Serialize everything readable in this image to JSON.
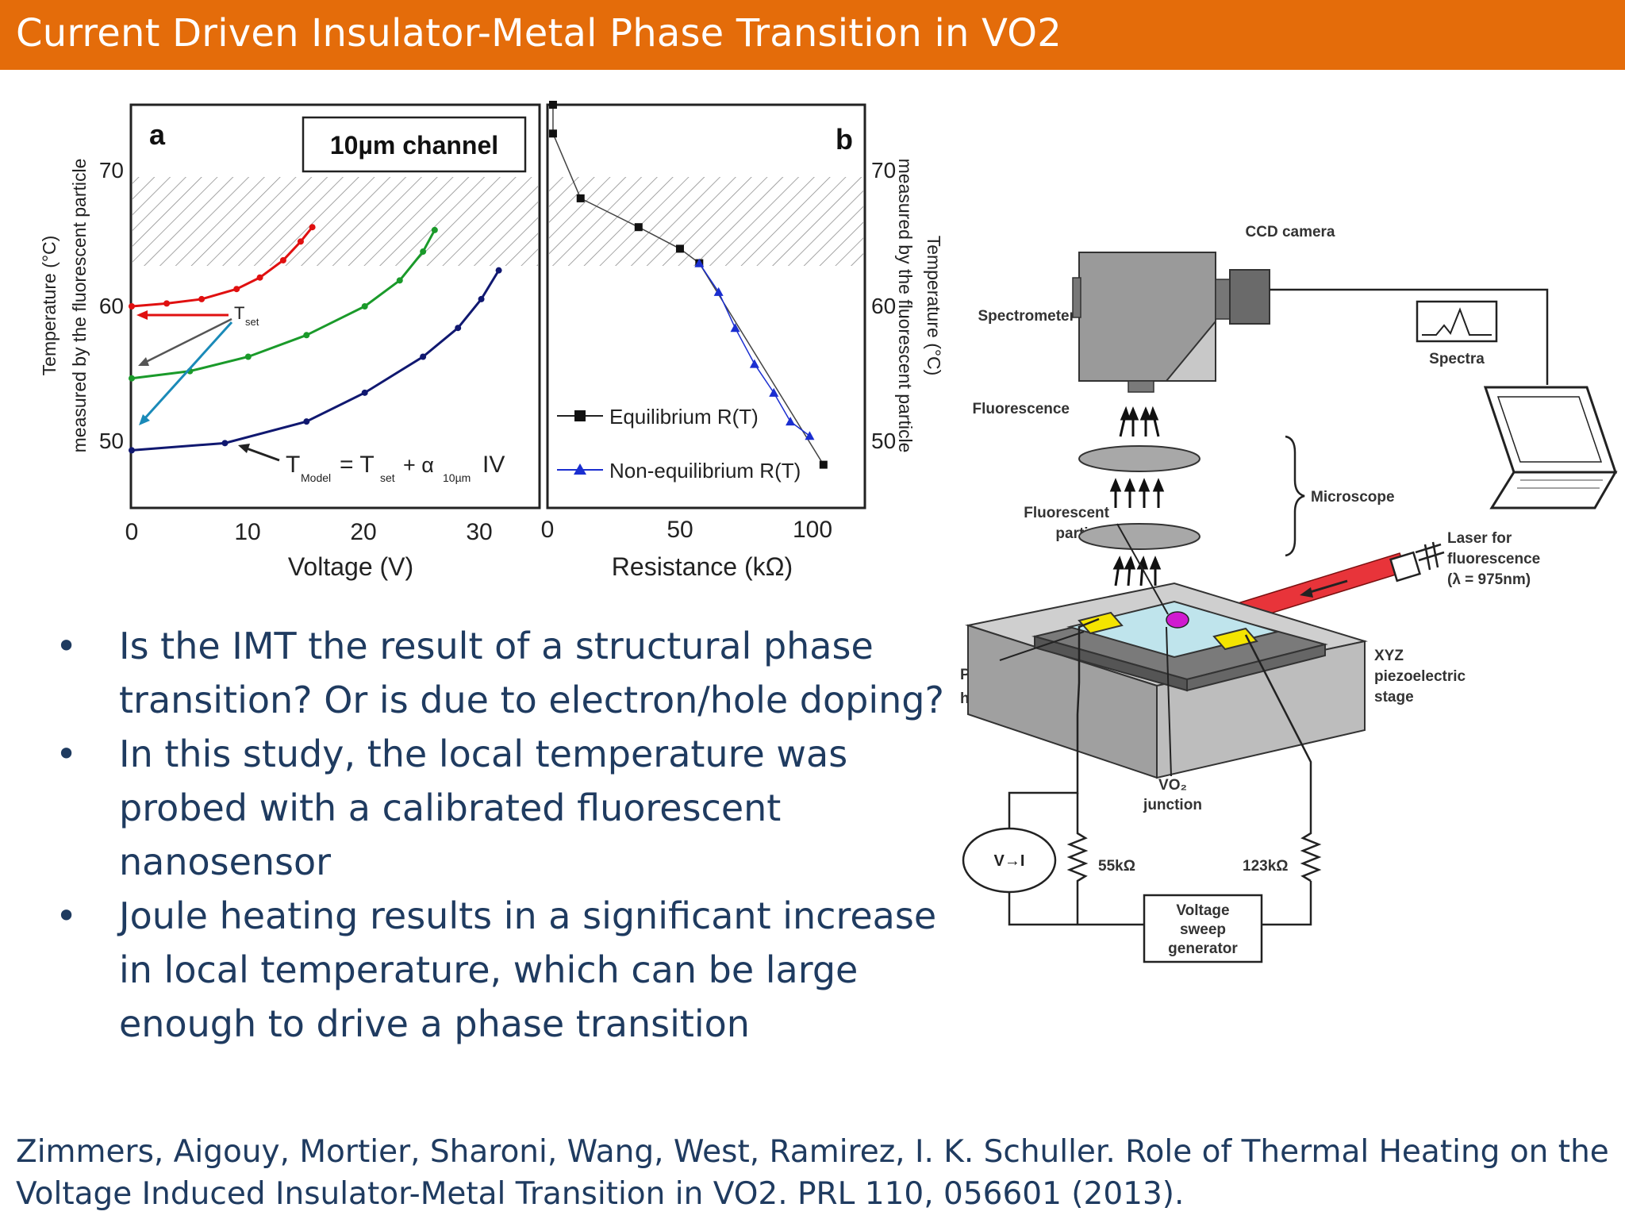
{
  "slide": {
    "title": "Current Driven Insulator-Metal Phase Transition in VO2",
    "bullets": [
      "Is the IMT the result of a structural phase transition? Or is due to electron/hole doping?",
      "In this study, the local temperature was probed with a calibrated fluorescent nanosensor",
      "Joule heating results in a significant increase in local temperature, which can be large enough to drive a phase transition"
    ],
    "bullet_symbol": "•",
    "citation_line1": "Zimmers, Aigouy, Mortier, Sharoni, Wang, West, Ramirez, I. K. Schuller. Role of Thermal Heating on the",
    "citation_line2": "Voltage Induced Insulator-Metal Transition in VO2. PRL 110, 056601 (2013)."
  },
  "figure": {
    "panel_a": {
      "letter": "a",
      "inset": "10µm channel",
      "ylabel_line1": "Temperature (°C)",
      "ylabel_line2": "measured by the fluorescent particle",
      "xlabel": "Voltage (V)",
      "xticks": [
        "0",
        "10",
        "20",
        "30"
      ],
      "yticks": [
        "70",
        "60",
        "50"
      ],
      "tset_label": "T",
      "tset_sub": "set",
      "model_T": "T",
      "model_sub1": "Model",
      "model_eq": "= T",
      "model_sub2": "set",
      "model_plus": "+ α",
      "model_sub3": "10µm",
      "model_iv": "IV"
    },
    "panel_b": {
      "letter": "b",
      "xlabel": "Resistance (kΩ)",
      "xticks": [
        "0",
        "50",
        "100"
      ],
      "yticks": [
        "70",
        "60",
        "50"
      ],
      "ylabel_line1": "Temperature (°C)",
      "ylabel_line2": "measured by the fluorescent particle",
      "legend_equilibrium": "Equilibrium R(T)",
      "legend_nonequilibrium": "Non-equilibrium R(T)"
    }
  },
  "chart_data": [
    {
      "type": "scatter",
      "title": "",
      "xlabel": "Voltage (V)",
      "ylabel": "Temperature (°C) measured by the fluorescent particle",
      "xlim": [
        0,
        35
      ],
      "ylim": [
        46,
        74
      ],
      "shaded_band_y": [
        63.5,
        69.5
      ],
      "annotation": "10µm channel",
      "series": [
        {
          "color": "#e01010",
          "x": [
            0,
            3,
            6,
            9,
            11,
            13,
            14.5,
            15.5
          ],
          "y": [
            60,
            60.2,
            60.5,
            61.2,
            62,
            63.2,
            64.5,
            65.5
          ]
        },
        {
          "color": "#1a9a2a",
          "x": [
            0,
            5,
            10,
            15,
            20,
            23,
            25,
            26
          ],
          "y": [
            55,
            55.5,
            56.5,
            58,
            60,
            61.8,
            63.8,
            65.3
          ]
        },
        {
          "color": "#101870",
          "x": [
            0,
            8,
            15,
            20,
            25,
            28,
            30,
            31.5
          ],
          "y": [
            50,
            50.5,
            52,
            54,
            56.5,
            58.5,
            60.5,
            62.5
          ]
        }
      ]
    },
    {
      "type": "scatter",
      "title": "",
      "xlabel": "Resistance (kΩ)",
      "ylabel": "Temperature (°C) measured by the fluorescent particle",
      "xlim": [
        0,
        115
      ],
      "ylim": [
        46,
        74
      ],
      "shaded_band_y": [
        63.5,
        69.5
      ],
      "series": [
        {
          "name": "Equilibrium R(T)",
          "color": "#222222",
          "x": [
            2,
            2,
            12,
            33,
            48,
            55,
            100
          ],
          "y": [
            74,
            72,
            67.5,
            65.5,
            64,
            63,
            49
          ]
        },
        {
          "name": "Non-equilibrium R(T)",
          "color": "#1a2ed0",
          "x": [
            55,
            62,
            68,
            75,
            82,
            88,
            95
          ],
          "y": [
            63,
            61,
            58.5,
            56,
            54,
            52,
            51
          ]
        }
      ]
    }
  ],
  "schematic": {
    "ccd_camera": "CCD camera",
    "spectrometer": "Spectrometer",
    "spectra": "Spectra",
    "fluorescence": "Fluorescence",
    "microscope": "Microscope",
    "fluorescent_particle_line1": "Fluorescent",
    "fluorescent_particle_line2": "particle",
    "laser_line1": "Laser for",
    "laser_line2": "fluorescence",
    "laser_line3": "(λ = 975nm)",
    "peltier_line1": "Peltier",
    "peltier_line2": "heater",
    "xyz_line1": "XYZ",
    "xyz_line2": "piezoelectric",
    "xyz_line3": "stage",
    "vo2_line1": "VO₂",
    "vo2_line2": "junction",
    "source": "V→I",
    "r1": "55kΩ",
    "r2": "123kΩ",
    "sweep_line1": "Voltage",
    "sweep_line2": "sweep",
    "sweep_line3": "generator"
  }
}
